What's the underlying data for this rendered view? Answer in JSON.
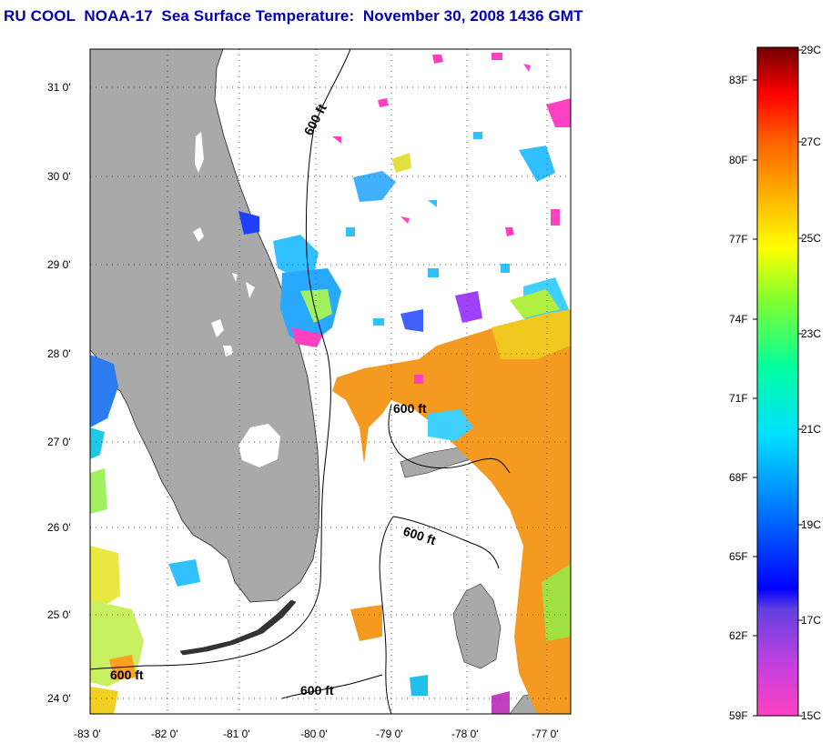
{
  "title": "RU COOL  NOAA-17  Sea Surface Temperature:  November 30, 2008 1436 GMT",
  "map": {
    "lat_labels": [
      "31 0'",
      "30 0'",
      "29 0'",
      "28 0'",
      "27 0'",
      "26 0'",
      "25 0'",
      "24 0'"
    ],
    "lon_labels": [
      "-83 0'",
      "-82 0'",
      "-81 0'",
      "-80 0'",
      "-79 0'",
      "-78 0'",
      "-77 0'"
    ],
    "contour_labels": [
      "600 ft",
      "600 ft",
      "600 ft",
      "600 ft",
      "600 ft"
    ],
    "land_color": "#a9a9a9",
    "ocean_color": "#ffffff"
  },
  "colorbar": {
    "fahrenheit_labels": [
      "83F",
      "80F",
      "77F",
      "74F",
      "71F",
      "68F",
      "65F",
      "62F",
      "59F"
    ],
    "celsius_labels": [
      "29C",
      "27C",
      "25C",
      "23C",
      "21C",
      "19C",
      "17C",
      "15C"
    ],
    "gradient_stops_bottom_to_top": [
      "#ff40c0",
      "#c040e0",
      "#8040e0",
      "#0000ff",
      "#0080ff",
      "#00e0ff",
      "#00ffa0",
      "#60ff40",
      "#c0ff20",
      "#ffff00",
      "#ffd000",
      "#ff9000",
      "#ff6000",
      "#ff0000",
      "#a00000",
      "#700000"
    ]
  }
}
